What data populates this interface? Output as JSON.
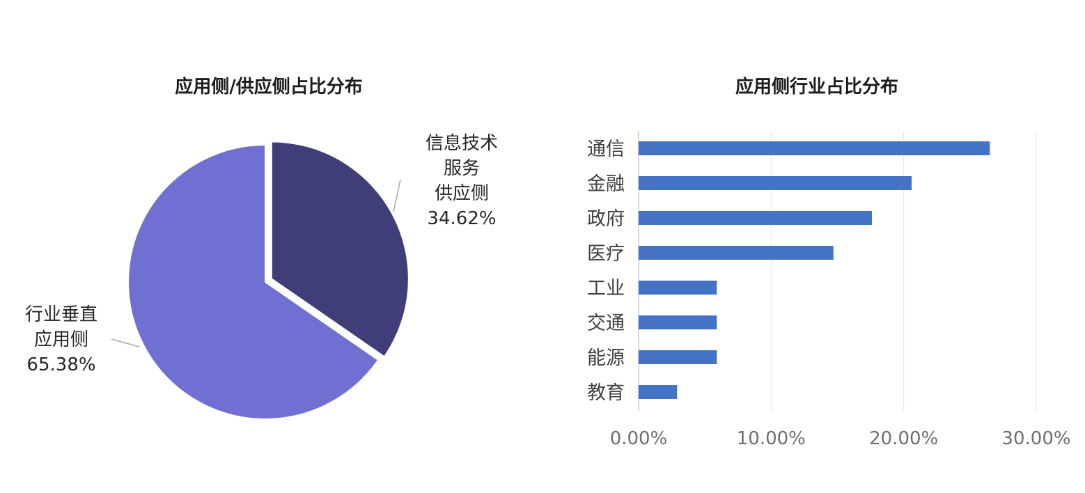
{
  "chart_data": [
    {
      "type": "pie",
      "title": "应用侧/供应侧占比分布",
      "slices": [
        {
          "label": [
            "信息技术",
            "服务",
            "供应侧"
          ],
          "value": 34.62,
          "value_label": "34.62%",
          "color": "#403e78",
          "exploded": true
        },
        {
          "label": [
            "行业垂直",
            "应用侧"
          ],
          "value": 65.38,
          "value_label": "65.38%",
          "color": "#7070d3",
          "exploded": false
        }
      ]
    },
    {
      "type": "bar",
      "orientation": "horizontal",
      "title": "应用侧行业占比分布",
      "categories": [
        "通信",
        "金融",
        "政府",
        "医疗",
        "工业",
        "交通",
        "能源",
        "教育"
      ],
      "values": [
        26.5,
        20.6,
        17.6,
        14.7,
        5.9,
        5.9,
        5.9,
        2.9
      ],
      "xlim": [
        0,
        30
      ],
      "xticks": [
        "0.00%",
        "10.00%",
        "20.00%",
        "30.00%"
      ],
      "grid": true,
      "bar_color": "#4472c4"
    }
  ]
}
